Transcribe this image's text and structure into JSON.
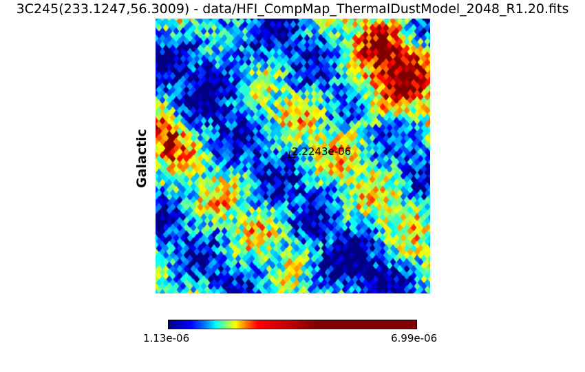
{
  "title": "3C245(233.1247,56.3009) - data/HFI_CompMap_ThermalDustModel_2048_R1.20.fits",
  "coord_label": "Galactic",
  "marker_value": "2.2243e-06",
  "colorbar": {
    "min_label": "1.13e-06",
    "max_label": "6.99e-06",
    "colormap": "jet"
  }
}
